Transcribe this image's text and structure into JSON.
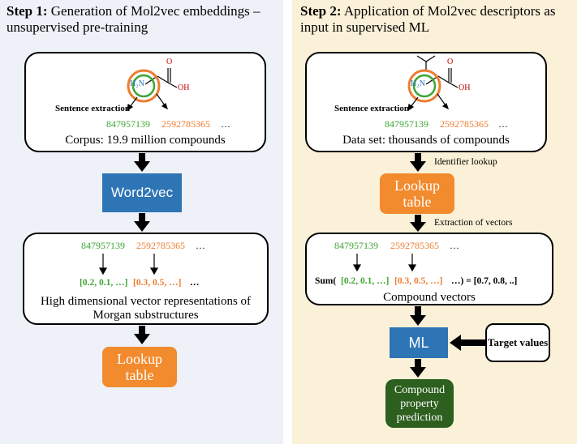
{
  "step1": {
    "title_bold": "Step 1:",
    "title_rest": "Generation of Mol2vec embeddings – unsupervised pre-training",
    "sentence_extraction": "Sentence extraction",
    "id1": "847957139",
    "id2": "2592785365",
    "ellipsis": "…",
    "corpus": "Corpus: 19.9 million compounds",
    "word2vec": "Word2vec",
    "vec1": "[0.2, 0.1, …]",
    "vec2": "[0.3, 0.5, …]",
    "vec_ellipsis": "…",
    "representation": "High dimensional vector representations of Morgan substructures",
    "lookup": "Lookup table",
    "mol_nh2": "H₂N",
    "mol_oh": "OH",
    "mol_o": "O"
  },
  "step2": {
    "title_bold": "Step 2:",
    "title_rest": "Application of Mol2vec descriptors as input in supervised ML",
    "sentence_extraction": "Sentence extraction",
    "id1": "847957139",
    "id2": "2592785365",
    "ellipsis": "…",
    "dataset": "Data set: thousands of compounds",
    "identifier_lookup": "Identifier lookup",
    "lookup": "Lookup table",
    "extraction": "Extraction of vectors",
    "sum_prefix": "Sum(",
    "vec1": "[0.2, 0.1, …]",
    "vec2": "[0.3, 0.5, …]",
    "sum_suffix": "…) = [0.7, 0.8, ..]",
    "compound_vectors": "Compound vectors",
    "ml": "ML",
    "target": "Target values",
    "prediction": "Compound property prediction",
    "mol_nh2": "H₂N",
    "mol_oh": "OH",
    "mol_o": "O"
  },
  "colors": {
    "green": "#3fa535",
    "orange": "#ed7d31",
    "blue": "#2e75b6",
    "lookup_orange": "#f28a2e",
    "dark_green": "#2d5f1e"
  }
}
